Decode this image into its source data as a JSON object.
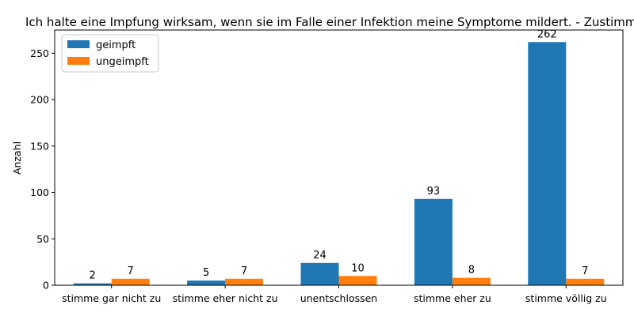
{
  "chart_data": {
    "type": "bar",
    "title": "Ich halte eine Impfung wirksam, wenn sie im Falle einer Infektion meine Symptome mildert. - Zustimmung",
    "xlabel": "",
    "ylabel": "Anzahl",
    "categories": [
      "stimme gar nicht zu",
      "stimme eher nicht zu",
      "unentschlossen",
      "stimme eher zu",
      "stimme völlig zu"
    ],
    "series": [
      {
        "name": "geimpft",
        "values": [
          2,
          5,
          24,
          93,
          262
        ],
        "color": "#1f77b4"
      },
      {
        "name": "ungeimpft",
        "values": [
          7,
          7,
          10,
          8,
          7
        ],
        "color": "#ff7f0e"
      }
    ],
    "ylim": [
      0,
      275
    ],
    "yticks": [
      0,
      50,
      100,
      150,
      200,
      250
    ],
    "grid": false,
    "legend_position": "top-left",
    "show_data_labels": true
  }
}
